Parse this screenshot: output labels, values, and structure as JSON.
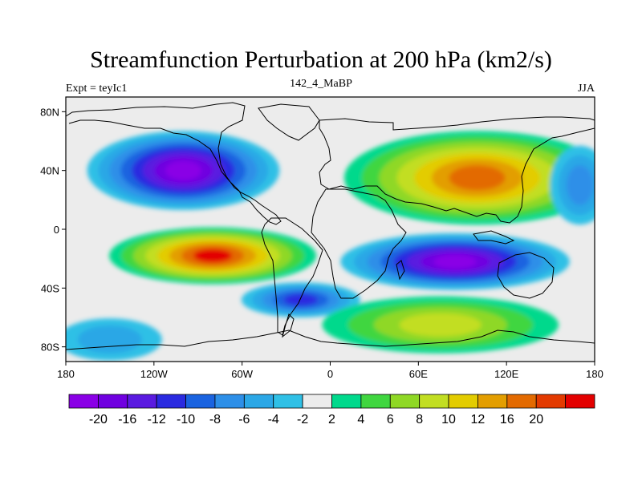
{
  "title": "Streamfunction Perturbation at 200 hPa (km2/s)",
  "subtitle_left": "Expt = teyIc1",
  "subtitle_center": "142_4_MaBP",
  "subtitle_right": "JJA",
  "lat_ticks": [
    "80N",
    "40N",
    "0",
    "40S",
    "80S"
  ],
  "lon_ticks": [
    "180",
    "120W",
    "60W",
    "0",
    "60E",
    "120E",
    "180"
  ],
  "colorbar": {
    "colors": [
      "#8a00e6",
      "#7000e0",
      "#5a1ae0",
      "#2a2ae0",
      "#1a63e0",
      "#2d8fe8",
      "#2ba7e6",
      "#2fc0e6",
      "#ececec",
      "#00d98c",
      "#40d640",
      "#8fd825",
      "#c2de22",
      "#e3cc00",
      "#e39e00",
      "#e36a00",
      "#e33a00",
      "#e30000"
    ],
    "labels": [
      "-20",
      "-16",
      "-12",
      "-10",
      "-8",
      "-6",
      "-4",
      "-2",
      "2",
      "4",
      "6",
      "8",
      "10",
      "12",
      "16",
      "20"
    ]
  },
  "chart_data": {
    "type": "heatmap",
    "title": "Streamfunction Perturbation at 200 hPa (km2/s)",
    "variable": "streamfunction perturbation",
    "level": "200 hPa",
    "units": "km2/s",
    "season": "JJA",
    "experiment": "teyIc1",
    "period": "142_4_MaBP",
    "x_range": [
      -180,
      180
    ],
    "y_range": [
      -90,
      90
    ],
    "contour_levels": [
      -20,
      -16,
      -12,
      -10,
      -8,
      -6,
      -4,
      -2,
      2,
      4,
      6,
      8,
      10,
      12,
      16,
      20
    ],
    "anomalies": [
      {
        "lon": -100,
        "lat": 40,
        "peak": -20,
        "lon_extent": 120,
        "lat_extent": 45
      },
      {
        "lon": -80,
        "lat": -18,
        "peak": 20,
        "lon_extent": 130,
        "lat_extent": 30
      },
      {
        "lon": 85,
        "lat": -22,
        "peak": -20,
        "lon_extent": 145,
        "lat_extent": 30
      },
      {
        "lon": 100,
        "lat": 35,
        "peak": 16,
        "lon_extent": 170,
        "lat_extent": 55
      },
      {
        "lon": -20,
        "lat": -48,
        "peak": -10,
        "lon_extent": 70,
        "lat_extent": 15
      },
      {
        "lon": 75,
        "lat": -65,
        "peak": 8,
        "lon_extent": 150,
        "lat_extent": 30
      },
      {
        "lon": -150,
        "lat": -75,
        "peak": -4,
        "lon_extent": 60,
        "lat_extent": 20
      },
      {
        "lon": 170,
        "lat": 30,
        "peak": -6,
        "lon_extent": 30,
        "lat_extent": 45
      }
    ]
  }
}
